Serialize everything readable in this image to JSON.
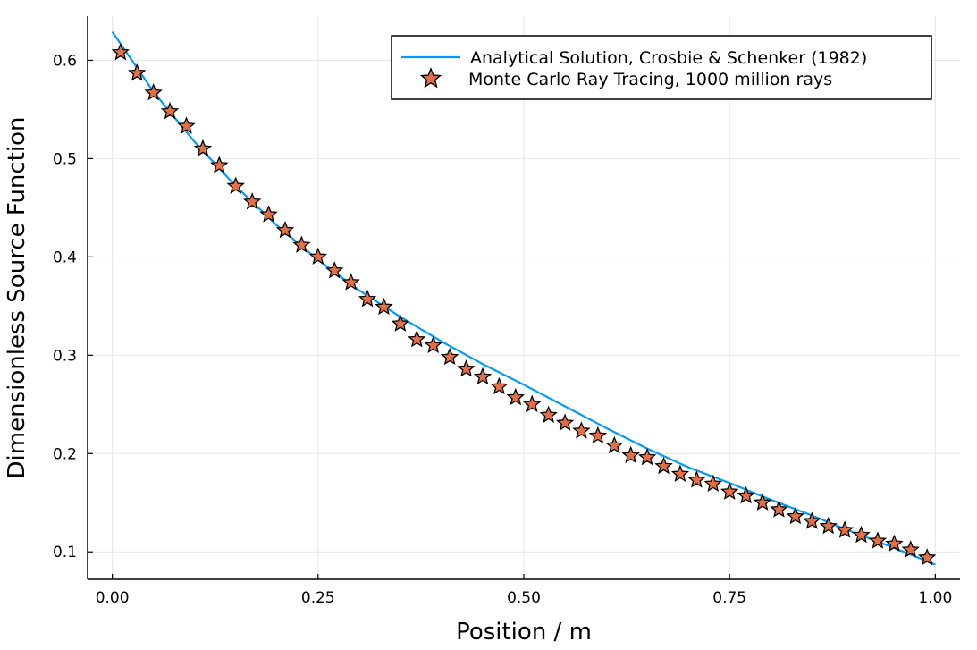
{
  "chart_data": {
    "type": "line",
    "title": "",
    "xlabel": "Position / m",
    "ylabel": "Dimensionless Source Function",
    "xlim": [
      -0.03,
      1.03
    ],
    "ylim": [
      0.072,
      0.645
    ],
    "grid": true,
    "legend_position": "top-right",
    "x_ticks": [
      {
        "value": 0.0,
        "label": "0.00"
      },
      {
        "value": 0.25,
        "label": "0.25"
      },
      {
        "value": 0.5,
        "label": "0.50"
      },
      {
        "value": 0.75,
        "label": "0.75"
      },
      {
        "value": 1.0,
        "label": "1.00"
      }
    ],
    "y_ticks": [
      {
        "value": 0.1,
        "label": "0.1"
      },
      {
        "value": 0.2,
        "label": "0.2"
      },
      {
        "value": 0.3,
        "label": "0.3"
      },
      {
        "value": 0.4,
        "label": "0.4"
      },
      {
        "value": 0.5,
        "label": "0.5"
      },
      {
        "value": 0.6,
        "label": "0.6"
      }
    ],
    "series": [
      {
        "name": "Analytical Solution, Crosbie & Schenker (1982)",
        "kind": "line",
        "color": "#009AFA",
        "x": [
          0.0,
          0.05,
          0.1,
          0.15,
          0.2,
          0.25,
          0.3,
          0.35,
          0.4,
          0.45,
          0.5,
          0.55,
          0.6,
          0.65,
          0.7,
          0.75,
          0.8,
          0.85,
          0.9,
          0.95,
          1.0
        ],
        "y": [
          0.629,
          0.568,
          0.517,
          0.472,
          0.432,
          0.397,
          0.366,
          0.339,
          0.314,
          0.291,
          0.27,
          0.248,
          0.226,
          0.205,
          0.186,
          0.17,
          0.153,
          0.137,
          0.12,
          0.104,
          0.087
        ]
      },
      {
        "name": "Monte Carlo Ray Tracing, 1000 million rays",
        "kind": "scatter",
        "marker": "star",
        "color": "#E26F46",
        "x": [
          0.01,
          0.03,
          0.05,
          0.07,
          0.09,
          0.11,
          0.13,
          0.15,
          0.17,
          0.19,
          0.21,
          0.23,
          0.25,
          0.27,
          0.29,
          0.31,
          0.33,
          0.35,
          0.37,
          0.39,
          0.41,
          0.43,
          0.45,
          0.47,
          0.49,
          0.51,
          0.53,
          0.55,
          0.57,
          0.59,
          0.61,
          0.63,
          0.65,
          0.67,
          0.69,
          0.71,
          0.73,
          0.75,
          0.77,
          0.79,
          0.81,
          0.83,
          0.85,
          0.87,
          0.89,
          0.91,
          0.93,
          0.95,
          0.97,
          0.99
        ],
        "y": [
          0.608,
          0.587,
          0.567,
          0.548,
          0.533,
          0.51,
          0.493,
          0.472,
          0.456,
          0.443,
          0.427,
          0.412,
          0.4,
          0.386,
          0.374,
          0.357,
          0.349,
          0.332,
          0.316,
          0.31,
          0.298,
          0.286,
          0.278,
          0.268,
          0.257,
          0.25,
          0.239,
          0.231,
          0.223,
          0.218,
          0.208,
          0.198,
          0.196,
          0.187,
          0.179,
          0.173,
          0.169,
          0.161,
          0.157,
          0.15,
          0.143,
          0.136,
          0.131,
          0.126,
          0.122,
          0.117,
          0.111,
          0.108,
          0.102,
          0.094
        ]
      }
    ]
  }
}
